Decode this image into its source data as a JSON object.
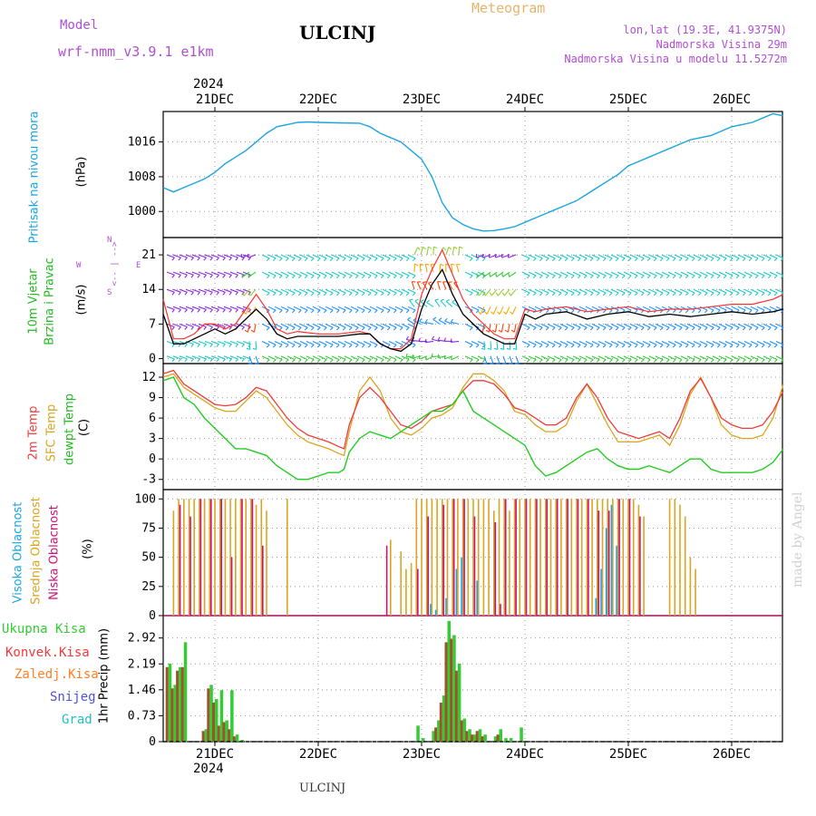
{
  "header": {
    "model_label": "Model",
    "model_name": "wrf-nmm_v3.9.1 e1km",
    "station": "ULCINJ",
    "meteogram": "Meteogram",
    "lonlat": "lon,lat (19.3E, 41.9375N)",
    "altitude": "Nadmorska Visina 29m",
    "model_altitude": "Nadmorska Visina u modelu 11.5272m",
    "footer_station": "ULCINJ",
    "watermark": "made by Angel",
    "year_top": "2024",
    "year_bottom": "2024"
  },
  "colors": {
    "pressure": "#1aa4e0",
    "wind_speed": "#000000",
    "gust": "#ff3030",
    "temp_2m": "#ee3b3b",
    "temp_sfc": "#daa520",
    "dewpoint": "#22cc22",
    "cloud_high": "#1aa4e0",
    "cloud_mid": "#daa520",
    "cloud_low": "#cc1177",
    "rain_total": "#32cd32",
    "rain_conv": "#ee3b3b",
    "rain_strat": "#ff7f24",
    "snow": "#5050e0",
    "hail": "#20c0c0"
  },
  "axes": {
    "days": [
      "21DEC",
      "22DEC",
      "23DEC",
      "24DEC",
      "25DEC",
      "26DEC"
    ],
    "day_positions": [
      1,
      2,
      3,
      4,
      5,
      6
    ]
  },
  "labels": {
    "p1": [
      "Pritisak na nivou mora",
      "(hPa)"
    ],
    "p2": [
      "10m Vjetar",
      "Brzina i Pravac",
      "(m/s)"
    ],
    "p2_compass": [
      "W",
      "<-- | -->",
      "E",
      "S",
      "N"
    ],
    "p3": [
      "2m Temp",
      "SFC Temp",
      "dewpt Temp",
      "(C)"
    ],
    "p4": [
      "Visoka Oblacnost",
      "Srednja Oblacnost",
      "Niska Oblacnost",
      "(%)"
    ],
    "p5": [
      "Ukupna Kisa",
      "Konvek.Kisa",
      "Zaledj.Kisa",
      "Snijeg",
      "Grad",
      "1hr Precip (mm)"
    ]
  },
  "chart_data": [
    {
      "type": "line",
      "name": "pressure",
      "ylim": [
        994,
        1023
      ],
      "yticks": [
        1000,
        1008,
        1016
      ],
      "x": [
        0.5,
        0.6,
        0.7,
        0.8,
        0.9,
        1.0,
        1.1,
        1.2,
        1.3,
        1.4,
        1.5,
        1.6,
        1.7,
        1.8,
        1.9,
        2.0,
        2.2,
        2.4,
        2.5,
        2.6,
        2.7,
        2.8,
        2.9,
        3.0,
        3.1,
        3.2,
        3.3,
        3.4,
        3.5,
        3.6,
        3.7,
        3.8,
        3.9,
        4.0,
        4.1,
        4.2,
        4.3,
        4.4,
        4.5,
        4.6,
        4.7,
        4.8,
        4.9,
        5.0,
        5.1,
        5.2,
        5.3,
        5.4,
        5.5,
        5.6,
        5.7,
        5.8,
        5.9,
        6.0,
        6.1,
        6.2,
        6.3,
        6.4,
        6.5
      ],
      "values": [
        1005.5,
        1004.5,
        1005.5,
        1006.5,
        1007.5,
        1009,
        1011,
        1012.5,
        1014,
        1016,
        1018,
        1019.5,
        1020,
        1020.5,
        1020.6,
        1020.5,
        1020.4,
        1020.3,
        1019.5,
        1018,
        1017,
        1016,
        1014,
        1012,
        1008,
        1002,
        998.5,
        997,
        996,
        995.5,
        995.6,
        996,
        996.5,
        997.5,
        998.5,
        999.5,
        1000.5,
        1001.5,
        1002.5,
        1004,
        1005.5,
        1007,
        1008.5,
        1010.5,
        1011.5,
        1012.5,
        1013.5,
        1014.5,
        1015.5,
        1016.5,
        1017,
        1017.5,
        1018.5,
        1019.5,
        1020,
        1020.5,
        1021.5,
        1022.5,
        1022
      ]
    },
    {
      "type": "line",
      "name": "wind",
      "ylim": [
        -1,
        24.5
      ],
      "yticks": [
        0,
        7,
        14,
        21
      ],
      "x": [
        0.5,
        0.6,
        0.7,
        0.8,
        0.9,
        1.0,
        1.1,
        1.2,
        1.3,
        1.4,
        1.5,
        1.6,
        1.7,
        1.8,
        2.0,
        2.2,
        2.4,
        2.5,
        2.6,
        2.7,
        2.8,
        2.9,
        3.0,
        3.1,
        3.2,
        3.3,
        3.4,
        3.5,
        3.6,
        3.7,
        3.8,
        3.9,
        4.0,
        4.1,
        4.2,
        4.4,
        4.6,
        4.8,
        5.0,
        5.2,
        5.4,
        5.6,
        5.8,
        6.0,
        6.2,
        6.4,
        6.5
      ],
      "speed": [
        9,
        3,
        3,
        4,
        5,
        6,
        5,
        6,
        8,
        10,
        8,
        5,
        4,
        4.5,
        4.5,
        4.5,
        5,
        5,
        3,
        2,
        1.5,
        3,
        10,
        15,
        18,
        13,
        9,
        7,
        5,
        4,
        3,
        3,
        9,
        8,
        9,
        9.5,
        8,
        9,
        9.5,
        8.5,
        9,
        8.5,
        9,
        9.5,
        9,
        9.5,
        10
      ],
      "gust": [
        12,
        4,
        4,
        5,
        7,
        7,
        6,
        7,
        10,
        13,
        10,
        6,
        5,
        5.5,
        5,
        5,
        5.5,
        5,
        3,
        2,
        2,
        4,
        13,
        18,
        22,
        17,
        12,
        9,
        7,
        5,
        4,
        4,
        10,
        9.5,
        10,
        10.5,
        9.5,
        10,
        10.5,
        9.5,
        10,
        10,
        10.5,
        11,
        11,
        12,
        13
      ]
    },
    {
      "type": "line",
      "name": "temperature",
      "ylim": [
        -4.5,
        14
      ],
      "yticks": [
        -3,
        0,
        3,
        6,
        9,
        12
      ],
      "x": [
        0.5,
        0.6,
        0.7,
        0.8,
        0.9,
        1.0,
        1.1,
        1.2,
        1.3,
        1.4,
        1.5,
        1.6,
        1.7,
        1.8,
        1.9,
        2.0,
        2.1,
        2.2,
        2.25,
        2.3,
        2.4,
        2.5,
        2.6,
        2.7,
        2.8,
        2.9,
        3.0,
        3.1,
        3.2,
        3.3,
        3.4,
        3.5,
        3.6,
        3.7,
        3.8,
        3.9,
        4.0,
        4.1,
        4.2,
        4.3,
        4.4,
        4.5,
        4.6,
        4.7,
        4.8,
        4.9,
        5.0,
        5.1,
        5.2,
        5.3,
        5.4,
        5.5,
        5.6,
        5.7,
        5.8,
        5.9,
        6.0,
        6.1,
        6.2,
        6.3,
        6.4,
        6.5
      ],
      "t2m": [
        12.5,
        13,
        11,
        10,
        9,
        8,
        7.8,
        8,
        9,
        10.5,
        10,
        8,
        6,
        4.5,
        3.5,
        3,
        2.5,
        1.8,
        1.5,
        5,
        9,
        10.5,
        9,
        7,
        5,
        4.5,
        5.5,
        7,
        7.5,
        8,
        10,
        11.5,
        11.5,
        11,
        9.5,
        7.5,
        7,
        6,
        5,
        5,
        6,
        9,
        11,
        9,
        6,
        4,
        3.5,
        3,
        3.5,
        4,
        3,
        6,
        10,
        11.8,
        9,
        6,
        5,
        4.5,
        4.5,
        5,
        7,
        10
      ],
      "tsfc": [
        12,
        12.5,
        10.5,
        9.5,
        8.5,
        7.5,
        7,
        7,
        8.5,
        10,
        9,
        7,
        5,
        3.5,
        2.5,
        2,
        1.5,
        0.8,
        0.5,
        4,
        10,
        12,
        10,
        6,
        4,
        3.5,
        4.5,
        6,
        6.5,
        7.5,
        10.5,
        12.5,
        12.5,
        11.5,
        10,
        7,
        6.5,
        5,
        4,
        4,
        5,
        8.5,
        11,
        8,
        5,
        2.5,
        2.5,
        2.5,
        3,
        3.5,
        2,
        5,
        9.5,
        12,
        9,
        5,
        3.5,
        3,
        3,
        3.5,
        6,
        11
      ],
      "dewp": [
        11.5,
        12,
        9,
        8,
        6,
        4.5,
        3,
        1.5,
        1.5,
        1,
        0.5,
        -1,
        -2,
        -3,
        -3,
        -2.5,
        -2,
        -2,
        -1.5,
        1,
        3,
        4,
        3.5,
        3,
        4,
        5,
        6,
        7,
        7,
        8,
        10,
        7,
        6,
        5,
        4,
        3,
        2,
        -1,
        -2.5,
        -2,
        -1,
        0,
        1,
        1.5,
        0,
        -1,
        -1.5,
        -1.5,
        -1,
        -1.5,
        -2,
        -1,
        0,
        0,
        -1.5,
        -2,
        -2,
        -2,
        -2,
        -1.5,
        -0.5,
        1.5
      ]
    },
    {
      "type": "bar",
      "name": "clouds",
      "ylim": [
        0,
        108
      ],
      "yticks": [
        0,
        25,
        50,
        75,
        100
      ],
      "high": [
        [
          3.1,
          10
        ],
        [
          3.15,
          5
        ],
        [
          3.25,
          15
        ],
        [
          3.35,
          40
        ],
        [
          3.4,
          50
        ],
        [
          3.55,
          30
        ],
        [
          4.7,
          15
        ],
        [
          4.75,
          40
        ],
        [
          4.8,
          75
        ],
        [
          4.85,
          95
        ],
        [
          4.9,
          60
        ]
      ],
      "mid": [
        [
          0.6,
          90
        ],
        [
          0.65,
          100
        ],
        [
          0.7,
          100
        ],
        [
          0.75,
          100
        ],
        [
          0.8,
          100
        ],
        [
          0.85,
          100
        ],
        [
          0.9,
          100
        ],
        [
          0.95,
          100
        ],
        [
          1.0,
          100
        ],
        [
          1.05,
          100
        ],
        [
          1.1,
          100
        ],
        [
          1.15,
          100
        ],
        [
          1.2,
          100
        ],
        [
          1.25,
          100
        ],
        [
          1.3,
          100
        ],
        [
          1.35,
          100
        ],
        [
          1.4,
          95
        ],
        [
          1.45,
          100
        ],
        [
          1.5,
          90
        ],
        [
          1.7,
          100
        ],
        [
          2.7,
          65
        ],
        [
          2.8,
          55
        ],
        [
          2.85,
          40
        ],
        [
          2.9,
          45
        ],
        [
          2.95,
          100
        ],
        [
          3.0,
          100
        ],
        [
          3.05,
          100
        ],
        [
          3.1,
          100
        ],
        [
          3.15,
          100
        ],
        [
          3.2,
          100
        ],
        [
          3.25,
          100
        ],
        [
          3.3,
          100
        ],
        [
          3.35,
          100
        ],
        [
          3.4,
          100
        ],
        [
          3.45,
          100
        ],
        [
          3.5,
          100
        ],
        [
          3.55,
          100
        ],
        [
          3.6,
          100
        ],
        [
          3.65,
          100
        ],
        [
          3.7,
          90
        ],
        [
          3.75,
          100
        ],
        [
          3.8,
          100
        ],
        [
          3.85,
          90
        ],
        [
          3.9,
          100
        ],
        [
          3.95,
          100
        ],
        [
          4.0,
          100
        ],
        [
          4.05,
          100
        ],
        [
          4.1,
          100
        ],
        [
          4.15,
          100
        ],
        [
          4.2,
          100
        ],
        [
          4.25,
          100
        ],
        [
          4.3,
          100
        ],
        [
          4.35,
          100
        ],
        [
          4.4,
          100
        ],
        [
          4.45,
          100
        ],
        [
          4.5,
          100
        ],
        [
          4.55,
          100
        ],
        [
          4.6,
          100
        ],
        [
          4.65,
          100
        ],
        [
          4.7,
          100
        ],
        [
          4.75,
          100
        ],
        [
          4.8,
          100
        ],
        [
          4.85,
          100
        ],
        [
          4.9,
          100
        ],
        [
          4.95,
          100
        ],
        [
          5.0,
          100
        ],
        [
          5.05,
          100
        ],
        [
          5.1,
          95
        ],
        [
          5.15,
          85
        ],
        [
          5.4,
          100
        ],
        [
          5.45,
          100
        ],
        [
          5.5,
          95
        ],
        [
          5.55,
          85
        ],
        [
          5.6,
          50
        ],
        [
          5.65,
          40
        ]
      ],
      "low": [
        [
          0.65,
          95
        ],
        [
          0.75,
          85
        ],
        [
          0.85,
          100
        ],
        [
          0.95,
          100
        ],
        [
          1.05,
          100
        ],
        [
          1.15,
          50
        ],
        [
          1.25,
          100
        ],
        [
          1.35,
          100
        ],
        [
          1.45,
          60
        ],
        [
          2.65,
          60
        ],
        [
          2.95,
          40
        ],
        [
          3.05,
          85
        ],
        [
          3.2,
          95
        ],
        [
          3.3,
          100
        ],
        [
          3.4,
          100
        ],
        [
          3.5,
          85
        ],
        [
          3.7,
          80
        ],
        [
          3.75,
          10
        ],
        [
          3.8,
          100
        ],
        [
          3.9,
          100
        ],
        [
          4.0,
          100
        ],
        [
          4.1,
          100
        ],
        [
          4.2,
          100
        ],
        [
          4.3,
          100
        ],
        [
          4.4,
          100
        ],
        [
          4.5,
          100
        ],
        [
          4.6,
          100
        ],
        [
          4.7,
          90
        ],
        [
          4.8,
          90
        ],
        [
          4.9,
          100
        ],
        [
          5.0,
          100
        ],
        [
          5.1,
          85
        ]
      ]
    },
    {
      "type": "bar",
      "name": "precip",
      "ylim": [
        0,
        3.55
      ],
      "yticks": [
        0,
        0.73,
        1.46,
        2.19,
        2.92
      ],
      "total": [
        [
          0.55,
          2.2
        ],
        [
          0.6,
          1.6
        ],
        [
          0.65,
          2.1
        ],
        [
          0.7,
          2.8
        ],
        [
          0.9,
          0.35
        ],
        [
          0.95,
          1.6
        ],
        [
          1.0,
          1.2
        ],
        [
          1.05,
          1.45
        ],
        [
          1.1,
          0.6
        ],
        [
          1.15,
          1.45
        ],
        [
          1.2,
          0.2
        ],
        [
          1.25,
          0.05
        ],
        [
          2.95,
          0.45
        ],
        [
          3.0,
          0.1
        ],
        [
          3.1,
          0.3
        ],
        [
          3.15,
          0.6
        ],
        [
          3.2,
          1.3
        ],
        [
          3.25,
          3.4
        ],
        [
          3.3,
          3.0
        ],
        [
          3.35,
          2.2
        ],
        [
          3.4,
          0.65
        ],
        [
          3.45,
          0.35
        ],
        [
          3.5,
          0.2
        ],
        [
          3.55,
          0.35
        ],
        [
          3.6,
          0.2
        ],
        [
          3.7,
          0.15
        ],
        [
          3.75,
          0.35
        ],
        [
          3.8,
          0.1
        ],
        [
          3.85,
          0.1
        ],
        [
          3.95,
          0.4
        ]
      ],
      "strat": [
        [
          0.55,
          2.1
        ],
        [
          0.6,
          1.5
        ],
        [
          0.65,
          2.0
        ],
        [
          0.7,
          2.1
        ],
        [
          0.9,
          0.3
        ],
        [
          0.95,
          1.5
        ],
        [
          1.0,
          1.1
        ],
        [
          1.05,
          0.45
        ],
        [
          1.1,
          0.55
        ],
        [
          1.15,
          0.35
        ],
        [
          1.2,
          0.15
        ],
        [
          3.15,
          0.4
        ],
        [
          3.2,
          1.1
        ],
        [
          3.25,
          2.8
        ],
        [
          3.3,
          2.9
        ],
        [
          3.35,
          2.0
        ],
        [
          3.4,
          0.6
        ],
        [
          3.45,
          0.3
        ],
        [
          3.5,
          0.2
        ],
        [
          3.55,
          0.3
        ],
        [
          3.6,
          0.15
        ],
        [
          3.75,
          0.2
        ]
      ]
    }
  ]
}
